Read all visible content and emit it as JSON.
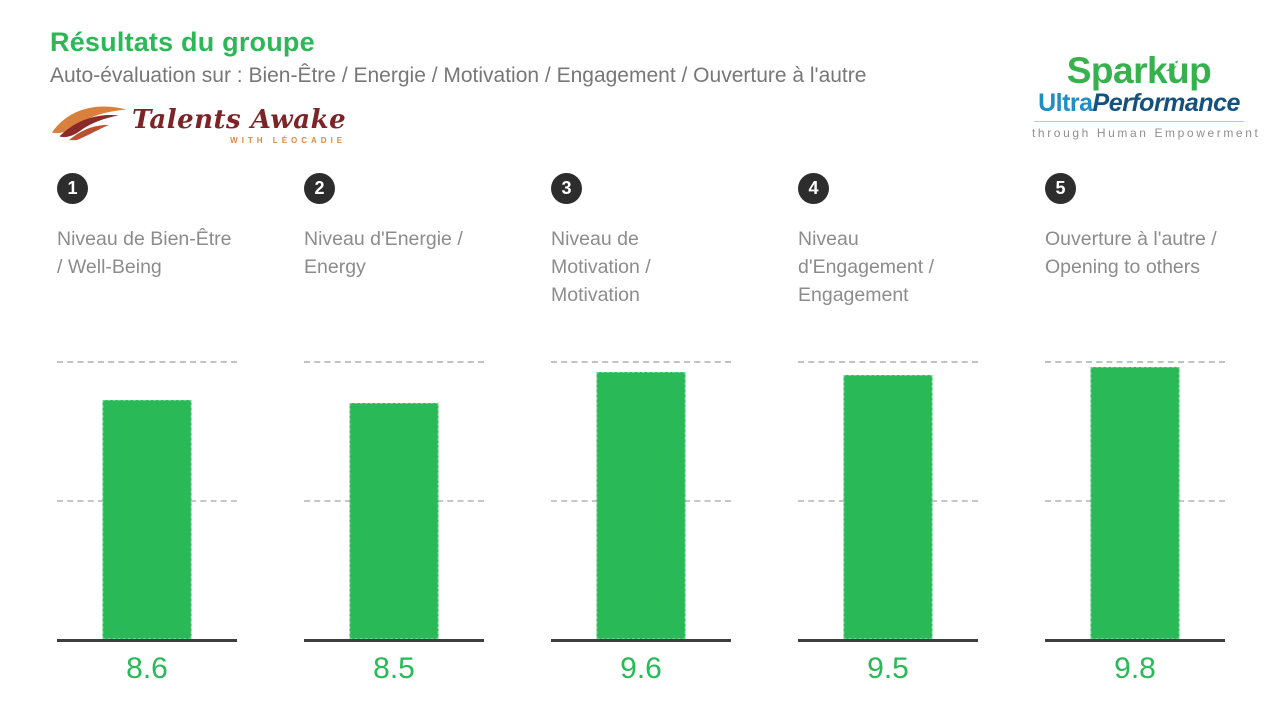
{
  "header": {
    "title": "Résultats du groupe",
    "subtitle": "Auto-évaluation sur : Bien-Être / Energie / Motivation / Engagement / Ouverture à l'autre"
  },
  "logos": {
    "talents_awake": {
      "name": "Talents Awake",
      "tagline": "WITH LÉOCADIE"
    },
    "sparkup": {
      "name": "Sparkup",
      "sub_brand_light": "Ultra",
      "sub_brand_dark": "Performance",
      "tagline": "through Human Empowerment"
    }
  },
  "columns": [
    {
      "number": "1",
      "label": "Niveau de Bien-Être / Well-Being",
      "value": "8.6"
    },
    {
      "number": "2",
      "label": "Niveau d'Energie / Energy",
      "value": "8.5"
    },
    {
      "number": "3",
      "label": "Niveau de Motivation / Motivation",
      "value": "9.6"
    },
    {
      "number": "4",
      "label": "Niveau d'Engagement / Engagement",
      "value": "9.5"
    },
    {
      "number": "5",
      "label": "Ouverture à l'autre / Opening to others",
      "value": "9.8"
    }
  ],
  "chart_data": {
    "type": "bar",
    "title": "Résultats du groupe",
    "subtitle": "Auto-évaluation sur : Bien-Être / Energie / Motivation / Engagement / Ouverture à l'autre",
    "categories": [
      "Niveau de Bien-Être / Well-Being",
      "Niveau d'Energie / Energy",
      "Niveau de Motivation / Motivation",
      "Niveau d'Engagement / Engagement",
      "Ouverture à l'autre / Opening to others"
    ],
    "values": [
      8.6,
      8.5,
      9.6,
      9.5,
      9.8
    ],
    "ylim": [
      0,
      10
    ],
    "gridlines": [
      5,
      10
    ],
    "grid_style": "dashed",
    "bar_color": "#29b957",
    "value_label_color": "#29b957",
    "legend": "none"
  },
  "colors": {
    "accent_green": "#29b957",
    "title_green": "#2db858",
    "label_gray": "#8c8c8c",
    "subtitle_gray": "#777777",
    "circle_black": "#2d2d2d",
    "axis_dark": "#3e3e3e",
    "sparkup_green": "#35b24e",
    "sparkup_blue_light": "#1f8dc6",
    "sparkup_blue_dark": "#15517d",
    "talents_maroon": "#7c2428",
    "talents_orange": "#dd8a3e"
  }
}
